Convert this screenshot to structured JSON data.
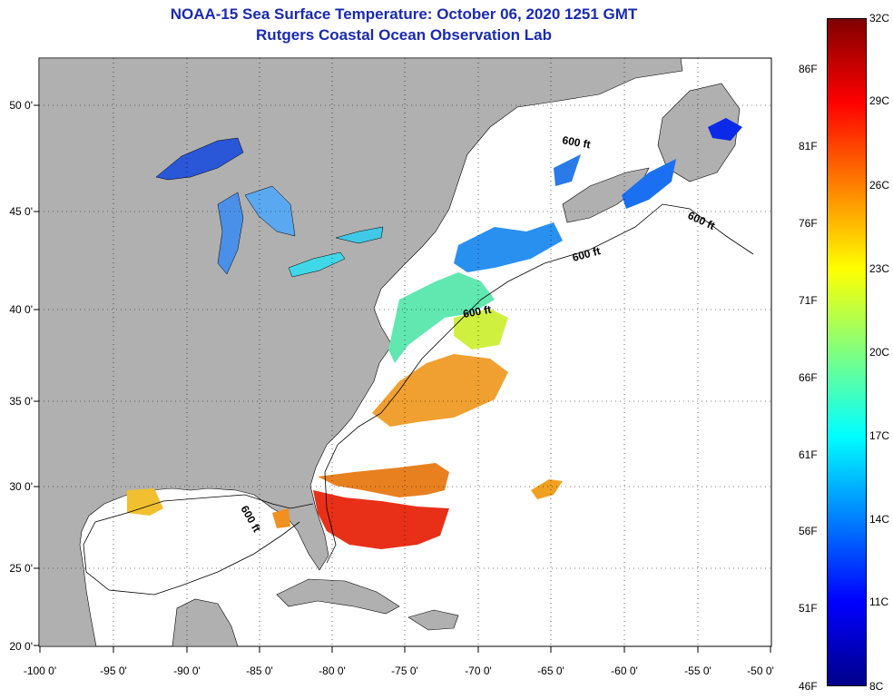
{
  "title": {
    "line1": "NOAA-15 Sea Surface Temperature:  October 06, 2020 1251 GMT",
    "line2": "Rutgers Coastal Ocean Observation Lab"
  },
  "axes": {
    "lon_labels": [
      "-100 0'",
      "-95 0'",
      "-90 0'",
      "-85 0'",
      "-80 0'",
      "-75 0'",
      "-70 0'",
      "-65 0'",
      "-60 0'",
      "-55 0'",
      "-50 0'"
    ],
    "lat_labels": [
      "50 0'",
      "45 0'",
      "40 0'",
      "35 0'",
      "30 0'",
      "25 0'",
      "20 0'"
    ]
  },
  "contour_labels": [
    "600 ft",
    "600 ft",
    "600 ft",
    "600 ft",
    "600 ft"
  ],
  "colorbar": {
    "celsius": [
      "32C",
      "29C",
      "26C",
      "23C",
      "20C",
      "17C",
      "14C",
      "11C",
      "8C"
    ],
    "fahrenheit": [
      "86F",
      "81F",
      "76F",
      "71F",
      "66F",
      "61F",
      "56F",
      "51F",
      "46F"
    ],
    "colors": [
      "#00008a",
      "#0000ff",
      "#0080ff",
      "#00ffff",
      "#80ff80",
      "#ffff00",
      "#ff8000",
      "#ff0000",
      "#800000"
    ]
  },
  "colors": {
    "land": "#b0b0b0",
    "ocean": "#ffffff",
    "title": "#1a2ab0"
  }
}
